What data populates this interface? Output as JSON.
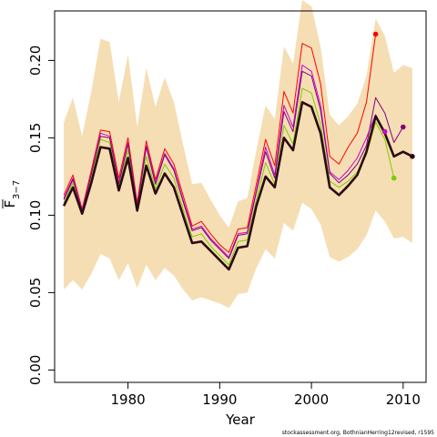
{
  "chart_data": {
    "type": "line",
    "xlabel": "Year",
    "ylabel": "F",
    "ylabel_sub": "3−7",
    "credit": "stockassessment.org, BothnianHerring12revised, r1595",
    "xlim": [
      1972.0,
      2012.5
    ],
    "ylim": [
      -0.008,
      0.232
    ],
    "x_ticks": [
      1980,
      1990,
      2000,
      2010
    ],
    "y_ticks": [
      0.0,
      0.05,
      0.1,
      0.15,
      0.2
    ],
    "y_tick_labels": [
      "0.00",
      "0.05",
      "0.10",
      "0.15",
      "0.20"
    ],
    "colors": {
      "band": "#F5DEB3",
      "main": "#2B0A12",
      "frame": "#000000"
    },
    "confidence_band": {
      "x": [
        1973,
        1974,
        1975,
        1976,
        1977,
        1978,
        1979,
        1980,
        1981,
        1982,
        1983,
        1984,
        1985,
        1986,
        1987,
        1988,
        1989,
        1990,
        1991,
        1992,
        1993,
        1994,
        1995,
        1996,
        1997,
        1998,
        1999,
        2000,
        2001,
        2002,
        2003,
        2004,
        2005,
        2006,
        2007,
        2008,
        2009,
        2010,
        2011
      ],
      "upper": [
        0.16,
        0.176,
        0.151,
        0.18,
        0.214,
        0.212,
        0.173,
        0.204,
        0.157,
        0.195,
        0.17,
        0.189,
        0.173,
        0.146,
        0.12,
        0.121,
        0.11,
        0.1,
        0.092,
        0.109,
        0.111,
        0.142,
        0.171,
        0.162,
        0.209,
        0.198,
        0.239,
        0.235,
        0.209,
        0.165,
        0.158,
        0.164,
        0.172,
        0.19,
        0.227,
        0.216,
        0.192,
        0.197,
        0.195
      ],
      "lower": [
        0.052,
        0.058,
        0.052,
        0.062,
        0.075,
        0.072,
        0.058,
        0.069,
        0.053,
        0.068,
        0.058,
        0.066,
        0.061,
        0.052,
        0.045,
        0.047,
        0.045,
        0.043,
        0.04,
        0.049,
        0.05,
        0.066,
        0.078,
        0.072,
        0.095,
        0.09,
        0.108,
        0.104,
        0.094,
        0.073,
        0.07,
        0.073,
        0.078,
        0.087,
        0.103,
        0.096,
        0.085,
        0.086,
        0.082
      ]
    },
    "series": [
      {
        "name": "",
        "color": "#FF0000",
        "width": 1,
        "end_point": true,
        "x": [
          1973,
          1974,
          1975,
          1976,
          1977,
          1978,
          1979,
          1980,
          1981,
          1982,
          1983,
          1984,
          1985,
          1986,
          1987,
          1988,
          1989,
          1990,
          1991,
          1992,
          1993,
          1994,
          1995,
          1996,
          1997,
          1998,
          1999,
          2000,
          2001,
          2002,
          2003,
          2004,
          2005,
          2006,
          2007
        ],
        "values": [
          0.113,
          0.126,
          0.104,
          0.129,
          0.155,
          0.154,
          0.124,
          0.15,
          0.108,
          0.148,
          0.123,
          0.143,
          0.133,
          0.113,
          0.093,
          0.096,
          0.088,
          0.081,
          0.076,
          0.091,
          0.092,
          0.12,
          0.149,
          0.132,
          0.18,
          0.166,
          0.211,
          0.208,
          0.185,
          0.138,
          0.133,
          0.144,
          0.153,
          0.173,
          0.217
        ]
      },
      {
        "name": "",
        "color": "#CC00CC",
        "width": 1,
        "end_point": true,
        "x": [
          1973,
          1974,
          1975,
          1976,
          1977,
          1978,
          1979,
          1980,
          1981,
          1982,
          1983,
          1984,
          1985,
          1986,
          1987,
          1988,
          1989,
          1990,
          1991,
          1992,
          1993,
          1994,
          1995,
          1996,
          1997,
          1998,
          1999,
          2000,
          2001,
          2002,
          2003,
          2004,
          2005,
          2006,
          2007,
          2008
        ],
        "values": [
          0.111,
          0.124,
          0.103,
          0.127,
          0.153,
          0.151,
          0.121,
          0.147,
          0.106,
          0.145,
          0.121,
          0.14,
          0.13,
          0.11,
          0.091,
          0.093,
          0.085,
          0.079,
          0.073,
          0.088,
          0.089,
          0.116,
          0.144,
          0.126,
          0.171,
          0.157,
          0.197,
          0.193,
          0.171,
          0.128,
          0.123,
          0.129,
          0.137,
          0.15,
          0.165,
          0.154
        ]
      },
      {
        "name": "",
        "color": "#800080",
        "width": 1,
        "end_point": true,
        "x": [
          1973,
          1974,
          1975,
          1976,
          1977,
          1978,
          1979,
          1980,
          1981,
          1982,
          1983,
          1984,
          1985,
          1986,
          1987,
          1988,
          1989,
          1990,
          1991,
          1992,
          1993,
          1994,
          1995,
          1996,
          1997,
          1998,
          1999,
          2000,
          2001,
          2002,
          2003,
          2004,
          2005,
          2006,
          2007,
          2008,
          2009,
          2010
        ],
        "values": [
          0.11,
          0.123,
          0.102,
          0.126,
          0.151,
          0.15,
          0.12,
          0.146,
          0.105,
          0.144,
          0.12,
          0.139,
          0.129,
          0.109,
          0.09,
          0.092,
          0.084,
          0.078,
          0.072,
          0.087,
          0.088,
          0.115,
          0.141,
          0.124,
          0.167,
          0.154,
          0.193,
          0.19,
          0.168,
          0.127,
          0.121,
          0.126,
          0.133,
          0.145,
          0.176,
          0.166,
          0.147,
          0.157
        ]
      },
      {
        "name": "",
        "color": "#7FCC00",
        "width": 1,
        "end_point": true,
        "x": [
          1973,
          1974,
          1975,
          1976,
          1977,
          1978,
          1979,
          1980,
          1981,
          1982,
          1983,
          1984,
          1985,
          1986,
          1987,
          1988,
          1989,
          1990,
          1991,
          1992,
          1993,
          1994,
          1995,
          1996,
          1997,
          1998,
          1999,
          2000,
          2001,
          2002,
          2003,
          2004,
          2005,
          2006,
          2007,
          2008,
          2009
        ],
        "values": [
          0.108,
          0.121,
          0.101,
          0.124,
          0.149,
          0.147,
          0.118,
          0.142,
          0.104,
          0.138,
          0.117,
          0.133,
          0.124,
          0.104,
          0.086,
          0.088,
          0.08,
          0.074,
          0.068,
          0.083,
          0.084,
          0.11,
          0.134,
          0.12,
          0.158,
          0.146,
          0.182,
          0.179,
          0.159,
          0.122,
          0.118,
          0.122,
          0.128,
          0.139,
          0.16,
          0.149,
          0.124
        ]
      },
      {
        "name": "",
        "color": "#2B0A12",
        "width": 2.6,
        "end_point": true,
        "x": [
          1973,
          1974,
          1975,
          1976,
          1977,
          1978,
          1979,
          1980,
          1981,
          1982,
          1983,
          1984,
          1985,
          1986,
          1987,
          1988,
          1989,
          1990,
          1991,
          1992,
          1993,
          1994,
          1995,
          1996,
          1997,
          1998,
          1999,
          2000,
          2001,
          2002,
          2003,
          2004,
          2005,
          2006,
          2007,
          2008,
          2009,
          2010,
          2011
        ],
        "values": [
          0.106,
          0.118,
          0.101,
          0.121,
          0.144,
          0.143,
          0.116,
          0.137,
          0.103,
          0.132,
          0.114,
          0.127,
          0.118,
          0.1,
          0.082,
          0.083,
          0.077,
          0.071,
          0.065,
          0.079,
          0.08,
          0.106,
          0.125,
          0.118,
          0.15,
          0.142,
          0.173,
          0.17,
          0.153,
          0.118,
          0.113,
          0.119,
          0.126,
          0.141,
          0.164,
          0.153,
          0.138,
          0.141,
          0.138
        ]
      }
    ]
  }
}
